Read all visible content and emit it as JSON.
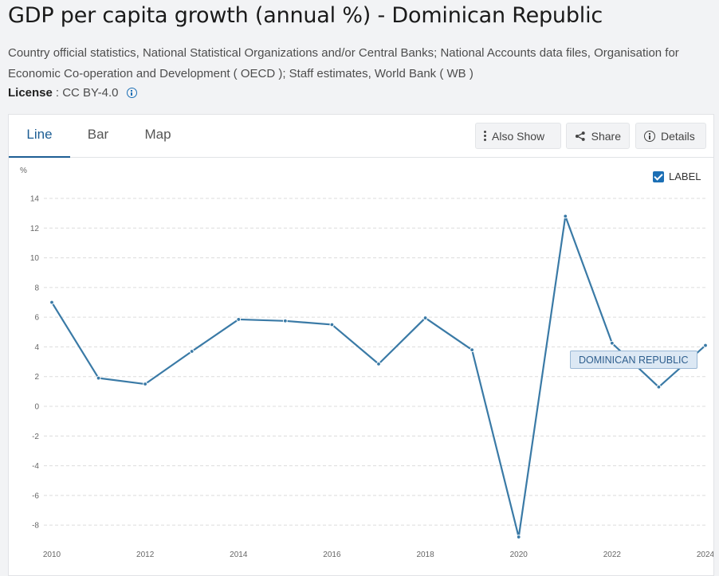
{
  "header": {
    "title": "GDP per capita growth (annual %) - Dominican Republic",
    "source": "Country official statistics, National Statistical Organizations and/or Central Banks; National Accounts data files, Organisation for Economic Co-operation and Development ( OECD ); Staff estimates, World Bank ( WB )",
    "license_label": "License",
    "license_value": ": CC BY-4.0"
  },
  "tabs": [
    {
      "label": "Line",
      "active": true
    },
    {
      "label": "Bar",
      "active": false
    },
    {
      "label": "Map",
      "active": false
    }
  ],
  "toolbar": {
    "also_show": "Also Show",
    "share": "Share",
    "details": "Details"
  },
  "label_toggle": {
    "text": "LABEL",
    "checked": true
  },
  "colors": {
    "series": "#3a7aa6",
    "accent": "#1c6fb5",
    "active_tab": "#1d5e94"
  },
  "chart_data": {
    "type": "line",
    "ylabel": "%",
    "ylim": [
      -9,
      14
    ],
    "yticks": [
      14,
      12,
      10,
      8,
      6,
      4,
      2,
      0,
      -2,
      -4,
      -6,
      -8
    ],
    "xlim": [
      2010,
      2024
    ],
    "xticks": [
      2010,
      2012,
      2014,
      2016,
      2018,
      2020,
      2022,
      2024
    ],
    "grid": true,
    "x": [
      2010,
      2011,
      2012,
      2013,
      2014,
      2015,
      2016,
      2017,
      2018,
      2019,
      2020,
      2021,
      2022,
      2023,
      2024
    ],
    "series": [
      {
        "name": "DOMINICAN REPUBLIC",
        "values": [
          7.0,
          1.9,
          1.5,
          3.7,
          5.85,
          5.75,
          5.5,
          2.85,
          5.95,
          3.8,
          -8.8,
          12.8,
          4.25,
          1.3,
          4.1
        ]
      }
    ]
  }
}
